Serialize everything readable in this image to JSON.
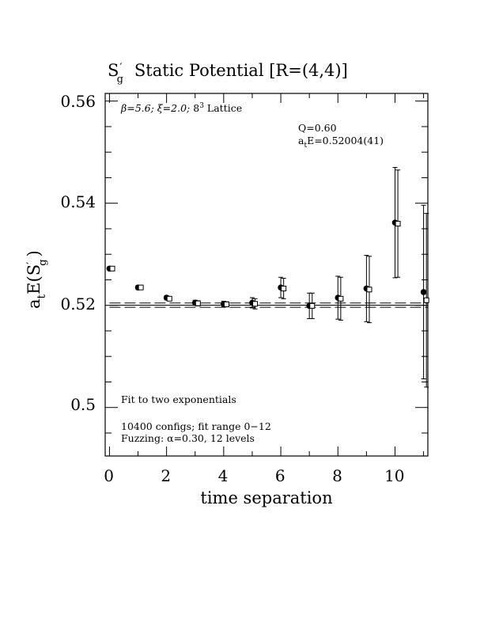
{
  "chart_data": {
    "type": "scatter",
    "title": {
      "main": "S",
      "prime": "′",
      "sub": "g",
      "rest": "Static Potential [R=(4,4)]"
    },
    "xlabel": "time separation",
    "ylabel": {
      "main": "a",
      "sub": "t",
      "rest": "E(S",
      "prime": "′",
      "sub2": "g",
      "close": ")"
    },
    "xlim": [
      -0.15,
      11.15
    ],
    "ylim": [
      0.4905,
      0.5615
    ],
    "x_ticks": [
      0,
      2,
      4,
      6,
      8,
      10
    ],
    "x_tick_labels": [
      "0",
      "2",
      "4",
      "6",
      "8",
      "10"
    ],
    "y_ticks": [
      0.5,
      0.52,
      0.54,
      0.56
    ],
    "y_tick_labels": [
      "0.5",
      "0.52",
      "0.54",
      "0.56"
    ],
    "grid": false,
    "annotations": {
      "lattice": {
        "beta": "β=5.6;",
        "xi": "ξ=2.0;",
        "size": "8",
        "sup": "3",
        "size_rest": " Lattice"
      },
      "q": "Q=0.60",
      "energy": {
        "main": "a",
        "sub": "t",
        "rest": "E=0.52004(41)"
      },
      "fit": "Fit to two exponentials",
      "configs": "10400 configs; fit range 0−12",
      "fuzzing": "Fuzzing: α=0.30, 12 levels"
    },
    "fit_line": {
      "value": 0.52004,
      "error": 0.00041,
      "x_range": [
        0,
        11.15
      ]
    },
    "series": [
      {
        "marker": "filled-circle",
        "points": [
          {
            "x": 0,
            "y": 0.5272,
            "err": 0.0003
          },
          {
            "x": 1,
            "y": 0.5235,
            "err": 0.0004
          },
          {
            "x": 2,
            "y": 0.5215,
            "err": 0.0004
          },
          {
            "x": 3,
            "y": 0.5205,
            "err": 0.0005
          },
          {
            "x": 4,
            "y": 0.5203,
            "err": 0.0005
          },
          {
            "x": 5,
            "y": 0.5205,
            "err": 0.001
          },
          {
            "x": 6,
            "y": 0.5235,
            "err": 0.002
          },
          {
            "x": 7,
            "y": 0.5199,
            "err": 0.0025
          },
          {
            "x": 8,
            "y": 0.5215,
            "err": 0.0042
          },
          {
            "x": 9,
            "y": 0.5233,
            "err": 0.0065
          },
          {
            "x": 10,
            "y": 0.5362,
            "err": 0.0108
          },
          {
            "x": 11,
            "y": 0.5226,
            "err": 0.017
          }
        ]
      },
      {
        "marker": "open-square",
        "points": [
          {
            "x": 0.1,
            "y": 0.5272,
            "err": 0.0003
          },
          {
            "x": 1.1,
            "y": 0.5235,
            "err": 0.0004
          },
          {
            "x": 2.1,
            "y": 0.5213,
            "err": 0.0004
          },
          {
            "x": 3.1,
            "y": 0.5204,
            "err": 0.0005
          },
          {
            "x": 4.1,
            "y": 0.5202,
            "err": 0.0005
          },
          {
            "x": 5.1,
            "y": 0.5203,
            "err": 0.001
          },
          {
            "x": 6.1,
            "y": 0.5233,
            "err": 0.002
          },
          {
            "x": 7.1,
            "y": 0.5199,
            "err": 0.0025
          },
          {
            "x": 8.1,
            "y": 0.5213,
            "err": 0.0042
          },
          {
            "x": 9.1,
            "y": 0.5231,
            "err": 0.0065
          },
          {
            "x": 10.1,
            "y": 0.536,
            "err": 0.0105
          },
          {
            "x": 11.1,
            "y": 0.521,
            "err": 0.017
          }
        ]
      }
    ]
  }
}
